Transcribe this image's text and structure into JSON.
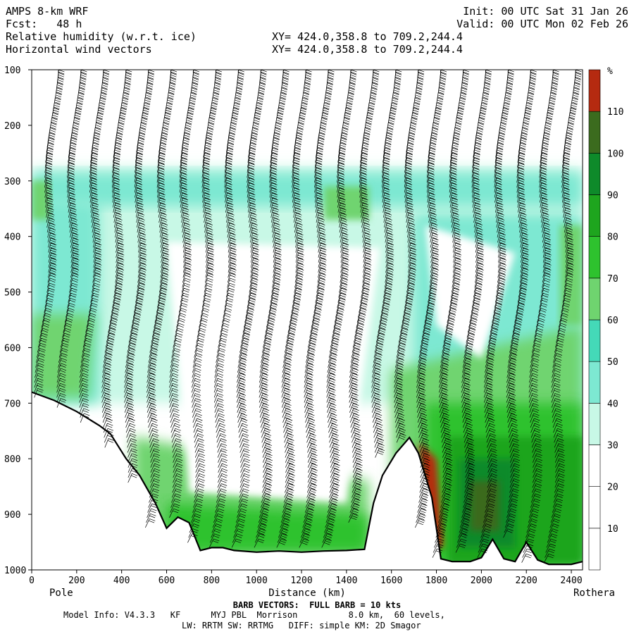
{
  "header": {
    "title": "AMPS 8-km WRF",
    "forecast": "Fcst:   48 h",
    "field_1": "Relative humidity (w.r.t. ice)",
    "field_2": "Horizontal wind vectors",
    "init": "Init: 00 UTC Sat 31 Jan 26",
    "valid": "Valid: 00 UTC Mon 02 Feb 26",
    "xy_1": "XY= 424.0,358.8 to 709.2,244.4",
    "xy_2": "XY= 424.0,358.8 to 709.2,244.4"
  },
  "footer": {
    "barb_note": "BARB VECTORS:  FULL BARB = 10 kts",
    "model_info": "Model Info: V4.3.3   KF      MYJ PBL  Morrison          8.0 km,  60 levels,",
    "physics": "LW: RRTM SW: RRTMG   DIFF: simple KM: 2D Smagor"
  },
  "chart_data": {
    "type": "heatmap",
    "title": "Relative humidity (w.r.t. ice)",
    "xlabel": "Distance (km)",
    "ylabel": "",
    "x_left_label": "Pole",
    "x_right_label": "Rothera",
    "xlim": [
      0,
      2450
    ],
    "ylim": [
      1000,
      100
    ],
    "x_ticks": [
      0,
      200,
      400,
      600,
      800,
      1000,
      1200,
      1400,
      1600,
      1800,
      2000,
      2200,
      2400
    ],
    "y_ticks": [
      100,
      200,
      300,
      400,
      500,
      600,
      700,
      800,
      900,
      1000
    ],
    "colorbar": {
      "unit": "%",
      "levels": [
        10,
        20,
        30,
        40,
        50,
        60,
        70,
        80,
        90,
        100,
        110
      ],
      "colors": [
        "#ffffff",
        "#ffffff",
        "#ffffff",
        "#c8f8e6",
        "#7de8d2",
        "#44d9b8",
        "#6fd46f",
        "#2ec22e",
        "#1ea51e",
        "#0e8a2a",
        "#3b6b1e",
        "#b52a10"
      ]
    },
    "terrain_profile": {
      "x": [
        0,
        100,
        200,
        300,
        350,
        420,
        480,
        550,
        600,
        650,
        700,
        750,
        800,
        850,
        900,
        1000,
        1100,
        1200,
        1300,
        1400,
        1480,
        1520,
        1560,
        1620,
        1680,
        1720,
        1780,
        1820,
        1870,
        1950,
        2000,
        2050,
        2100,
        2150,
        2200,
        2250,
        2300,
        2350,
        2400,
        2450
      ],
      "p": [
        680,
        695,
        715,
        740,
        755,
        800,
        830,
        880,
        925,
        905,
        915,
        965,
        960,
        960,
        965,
        968,
        966,
        968,
        966,
        965,
        963,
        880,
        830,
        790,
        762,
        790,
        870,
        980,
        985,
        985,
        978,
        945,
        980,
        985,
        950,
        982,
        990,
        990,
        990,
        985
      ]
    },
    "wind_barbs": {
      "x": [
        100,
        200,
        300,
        400,
        500,
        600,
        700,
        800,
        900,
        1000,
        1100,
        1200,
        1300,
        1400,
        1500,
        1600,
        1700,
        1800,
        1900,
        2000,
        2100,
        2200,
        2300,
        2400
      ],
      "knots_at_300hPa": [
        30,
        30,
        30,
        35,
        35,
        35,
        30,
        30,
        30,
        35,
        40,
        45,
        45,
        45,
        40,
        40,
        45,
        40,
        40,
        40,
        35,
        35,
        30,
        30
      ]
    }
  }
}
